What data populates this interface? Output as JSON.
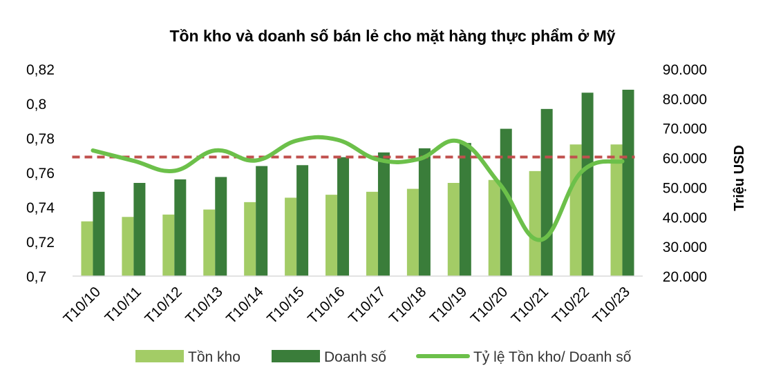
{
  "colors": {
    "inventory": "#a3cc66",
    "sales": "#3a7d3a",
    "ratio": "#6cc04a",
    "average": "#c0504d"
  },
  "chart_data": {
    "type": "bar",
    "title": "Tồn kho và doanh số bán lẻ cho mặt hàng thực phẩm ở Mỹ",
    "xlabel": "",
    "ylabel_left": "",
    "ylabel_right": "Triệu USD",
    "categories": [
      "T10/10",
      "T10/11",
      "T10/12",
      "T10/13",
      "T10/14",
      "T10/15",
      "T10/16",
      "T10/17",
      "T10/18",
      "T10/19",
      "T10/20",
      "T10/21",
      "T10/22",
      "T10/23"
    ],
    "series": [
      {
        "name": "Tồn kho",
        "type": "bar",
        "axis": "right",
        "values": [
          38500,
          40000,
          40800,
          42500,
          45000,
          46500,
          47500,
          48500,
          49500,
          51500,
          52500,
          55500,
          64500,
          64500
        ]
      },
      {
        "name": "Doanh số",
        "type": "bar",
        "axis": "right",
        "values": [
          48500,
          51500,
          52700,
          53500,
          57200,
          57500,
          60200,
          61800,
          63200,
          65000,
          69800,
          76500,
          82000,
          83000
        ]
      },
      {
        "name": "Tỷ lệ Tồn kho/ Doanh số",
        "type": "line",
        "axis": "left",
        "values": [
          0.7728,
          0.7668,
          0.761,
          0.7728,
          0.767,
          0.7785,
          0.779,
          0.7675,
          0.7678,
          0.778,
          0.753,
          0.721,
          0.7605,
          0.7665
        ]
      }
    ],
    "reference_line": {
      "axis": "left",
      "value": 0.769,
      "style": "dashed"
    },
    "y_left": {
      "ticks": [
        "0,7",
        "0,72",
        "0,74",
        "0,76",
        "0,78",
        "0,8",
        "0,82"
      ],
      "min": 0.7,
      "max": 0.82
    },
    "y_right": {
      "ticks": [
        "20.000",
        "30.000",
        "40.000",
        "50.000",
        "60.000",
        "70.000",
        "80.000",
        "90.000"
      ],
      "min": 20000,
      "max": 90000
    },
    "legend": [
      {
        "label": "Tồn kho",
        "kind": "bar",
        "color_key": "inventory"
      },
      {
        "label": "Doanh số",
        "kind": "bar",
        "color_key": "sales"
      },
      {
        "label": "Tỷ lệ Tồn kho/ Doanh số",
        "kind": "line",
        "color_key": "ratio"
      }
    ],
    "legend_position": "bottom",
    "grid": false
  }
}
